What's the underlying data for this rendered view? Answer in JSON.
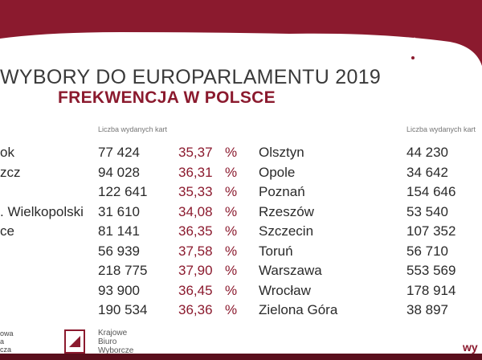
{
  "header": {
    "title": "WYBORY DO EUROPARLAMENTU 2019",
    "subtitle": "FREKWENCJA W POLSCE"
  },
  "table": {
    "left_column_header": "Liczba wydanych kart",
    "right_column_header": "Liczba wydanych kart",
    "percent_unit": "%",
    "rows": [
      {
        "city1": "ok",
        "cards1": "77 424",
        "pct": "35,37",
        "city2": "Olsztyn",
        "cards2": "44 230"
      },
      {
        "city1": "zcz",
        "cards1": "94 028",
        "pct": "36,31",
        "city2": "Opole",
        "cards2": "34 642"
      },
      {
        "city1": "",
        "cards1": "122 641",
        "pct": "35,33",
        "city2": "Poznań",
        "cards2": "154 646"
      },
      {
        "city1": ". Wielkopolski",
        "cards1": "31 610",
        "pct": "34,08",
        "city2": "Rzeszów",
        "cards2": "53 540"
      },
      {
        "city1": "ce",
        "cards1": "81 141",
        "pct": "36,35",
        "city2": "Szczecin",
        "cards2": "107 352"
      },
      {
        "city1": "",
        "cards1": "56 939",
        "pct": "37,58",
        "city2": "Toruń",
        "cards2": "56 710"
      },
      {
        "city1": "",
        "cards1": "218 775",
        "pct": "37,90",
        "city2": "Warszawa",
        "cards2": "553 569"
      },
      {
        "city1": "",
        "cards1": "93 900",
        "pct": "36,45",
        "city2": "Wrocław",
        "cards2": "178 914"
      },
      {
        "city1": "",
        "cards1": "190 534",
        "pct": "36,36",
        "city2": "Zielona Góra",
        "cards2": "38 897"
      }
    ]
  },
  "footer": {
    "left_text": "owa\na\ncza",
    "pkw_text": "Krajowe\nBiuro\nWyborcze",
    "right_text": "wy"
  },
  "colors": {
    "accent": "#8b1a2e",
    "dark_band": "#5a0f1c",
    "text": "#2a2a2a"
  }
}
